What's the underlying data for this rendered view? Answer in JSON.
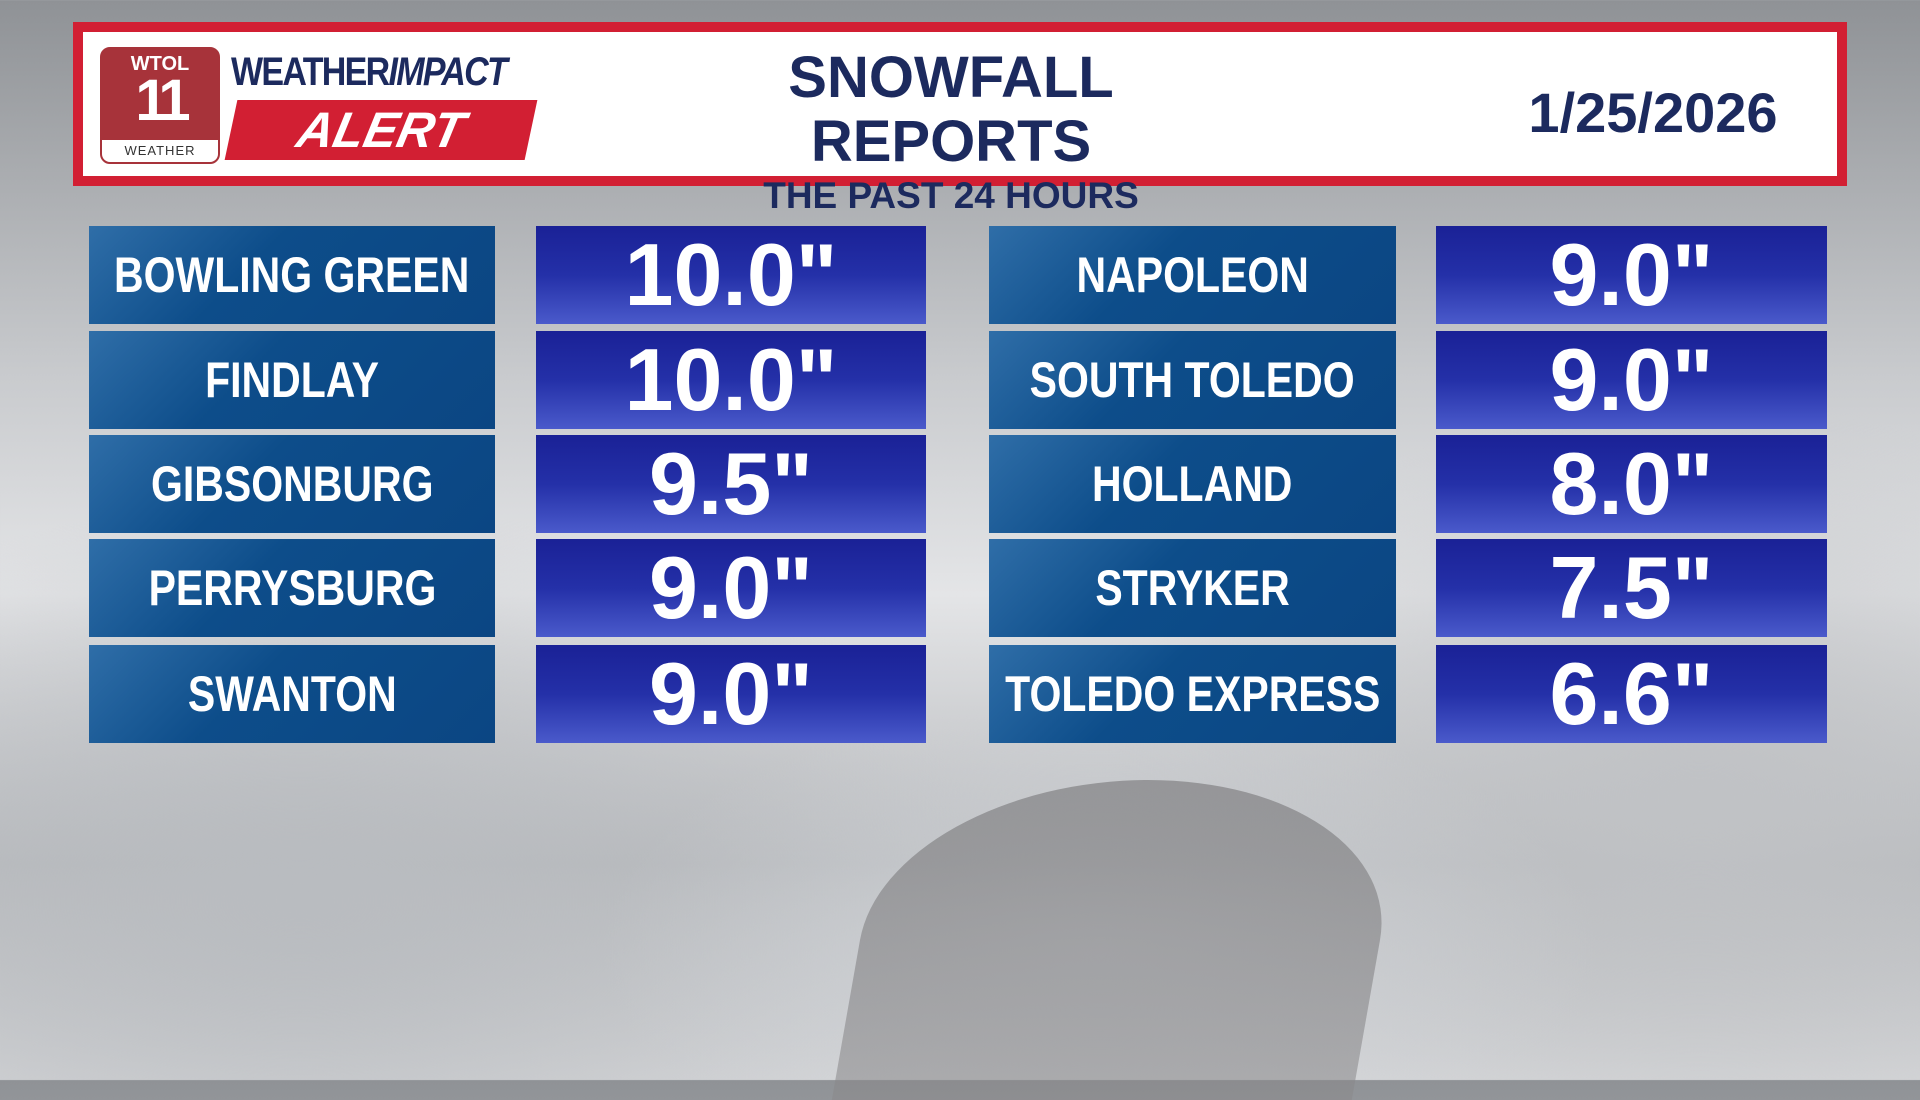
{
  "logo": {
    "station": "WTOL",
    "channel": "11",
    "sub": "WEATHER",
    "brand_a": "WEATHER",
    "brand_b": "IMPACT",
    "alert": "ALERT"
  },
  "header": {
    "title": "SNOWFALL REPORTS",
    "subtitle": "THE PAST 24 HOURS",
    "date": "1/25/2026"
  },
  "colors": {
    "header_red": "#d21f33",
    "navy": "#1c2a5e",
    "name_blue": "#0d4d8a",
    "value_blue": "#2430a8"
  },
  "reports": [
    {
      "location": "BOWLING GREEN",
      "amount": "10.0\""
    },
    {
      "location": "FINDLAY",
      "amount": "10.0\""
    },
    {
      "location": "GIBSONBURG",
      "amount": "9.5\""
    },
    {
      "location": "PERRYSBURG",
      "amount": "9.0\""
    },
    {
      "location": "SWANTON",
      "amount": "9.0\""
    },
    {
      "location": "NAPOLEON",
      "amount": "9.0\""
    },
    {
      "location": "SOUTH TOLEDO",
      "amount": "9.0\""
    },
    {
      "location": "HOLLAND",
      "amount": "8.0\""
    },
    {
      "location": "STRYKER",
      "amount": "7.5\""
    },
    {
      "location": "TOLEDO EXPRESS",
      "amount": "6.6\""
    }
  ]
}
